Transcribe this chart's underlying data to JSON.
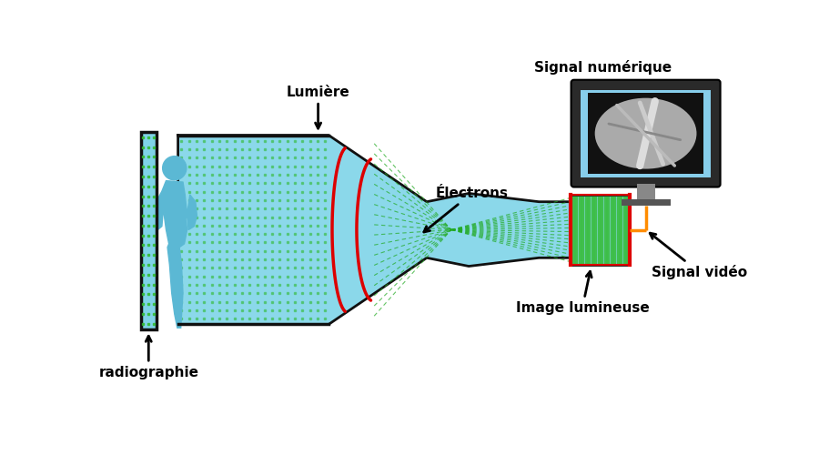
{
  "bg_color": "#ffffff",
  "tube_blue": "#7FD4E8",
  "panel_blue": "#7FD4E8",
  "human_blue": "#5BB8D4",
  "green_dot": "#33BB33",
  "green_line": "#22AA22",
  "red_curve": "#DD0000",
  "orange_dashed": "#FF8C00",
  "monitor_frame": "#2a2a2a",
  "monitor_screen": "#87CEEB",
  "monitor_stand": "#888888",
  "tube_outline": "#111111",
  "label_lumiere": "Lumière",
  "label_electrons": "Électrons",
  "label_signal_num": "Signal numérique",
  "label_signal_vid": "Signal vidéo",
  "label_image_lum": "Image lumineuse",
  "label_radio": "radiographie",
  "font_size": 11
}
